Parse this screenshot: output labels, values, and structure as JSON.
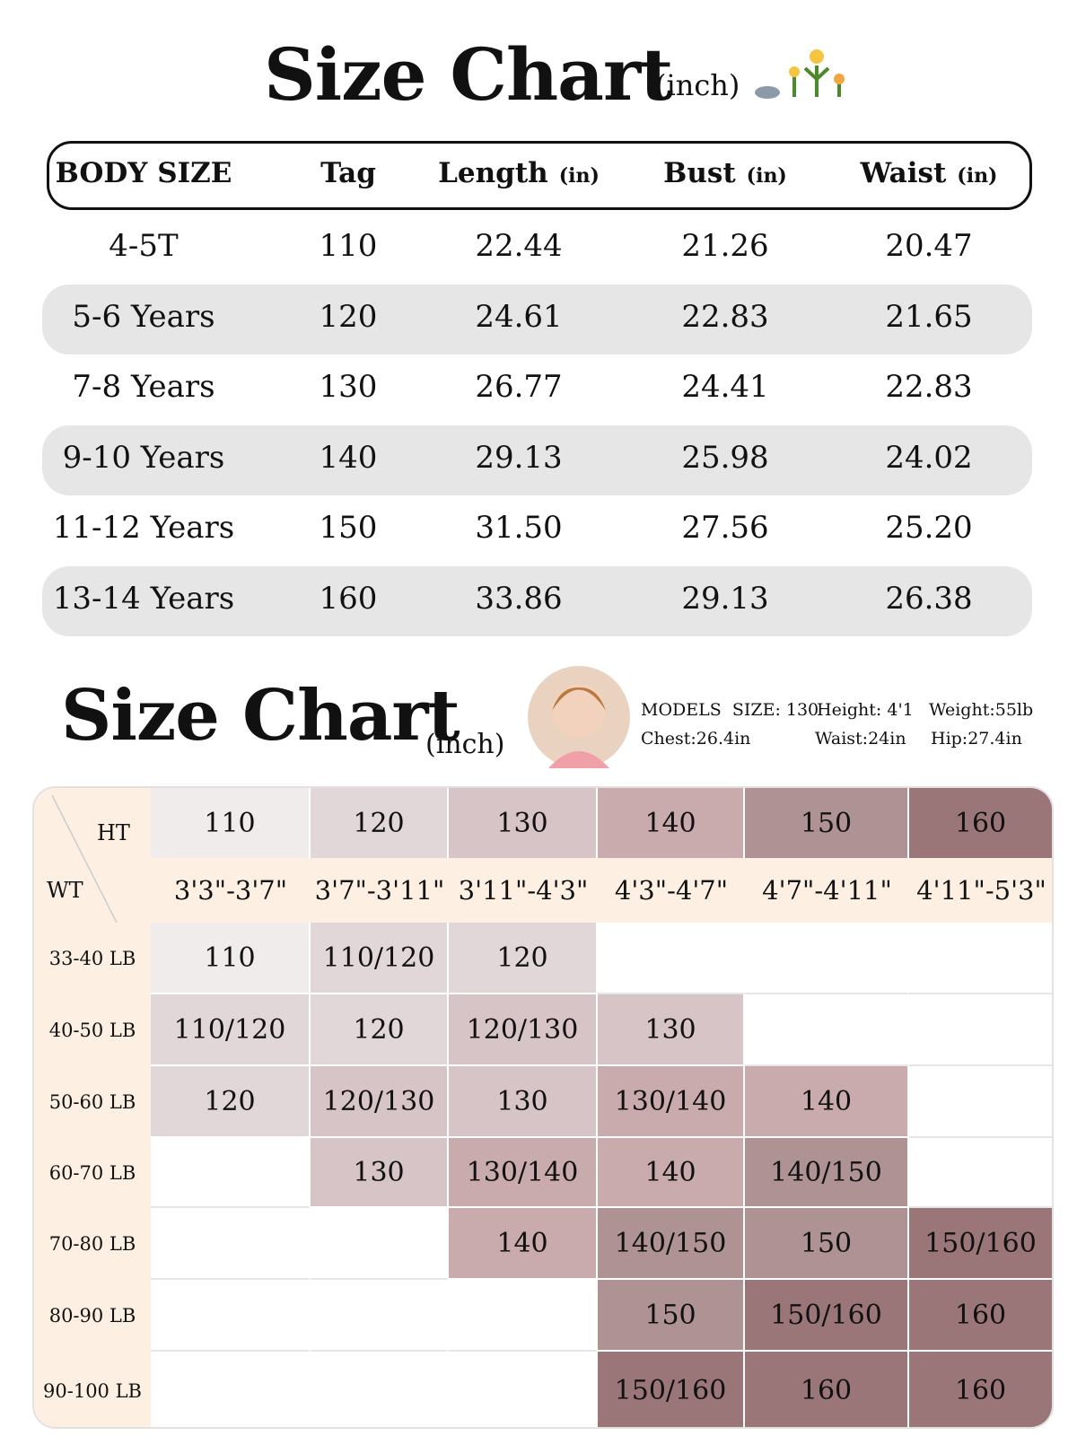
{
  "header": {
    "title": "Size Chart",
    "unit": "(inch)"
  },
  "size_table": {
    "columns": [
      {
        "label": "BODY SIZE"
      },
      {
        "label": "Tag"
      },
      {
        "label": "Length",
        "unit": "(in)"
      },
      {
        "label": "Bust",
        "unit": "(in)"
      },
      {
        "label": "Waist",
        "unit": "(in)"
      }
    ],
    "rows": [
      [
        "4-5T",
        "110",
        "22.44",
        "21.26",
        "20.47"
      ],
      [
        "5-6 Years",
        "120",
        "24.61",
        "22.83",
        "21.65"
      ],
      [
        "7-8 Years",
        "130",
        "26.77",
        "24.41",
        "22.83"
      ],
      [
        "9-10 Years",
        "140",
        "29.13",
        "25.98",
        "24.02"
      ],
      [
        "11-12 Years",
        "150",
        "31.50",
        "27.56",
        "25.20"
      ],
      [
        "13-14 Years",
        "160",
        "33.86",
        "29.13",
        "26.38"
      ]
    ]
  },
  "section2": {
    "title": "Size Chart",
    "unit": "(inch)"
  },
  "model": {
    "size": "MODELS  SIZE: 130",
    "height": "Height: 4'1",
    "weight": "Weight:55lb",
    "chest": "Chest:26.4in",
    "waist": "Waist:24in",
    "hip": "Hip:27.4in"
  },
  "grid": {
    "ht_label": "HT",
    "wt_label": "WT",
    "heights": [
      "110",
      "120",
      "130",
      "140",
      "150",
      "160"
    ],
    "height_ranges": [
      "3'3\"-3'7\"",
      "3'7\"-3'11\"",
      "3'11\"-4'3\"",
      "4'3\"-4'7\"",
      "4'7\"-4'11\"",
      "4'11\"-5'3\""
    ],
    "colors": [
      "#f1ecec",
      "#e2d7d8",
      "#d7c4c6",
      "#c9abad",
      "#ae9294",
      "#9a7679"
    ],
    "rows": [
      {
        "weight": "33-40 LB",
        "cells": [
          "110",
          "110/120",
          "120",
          null,
          null,
          null
        ]
      },
      {
        "weight": "40-50 LB",
        "cells": [
          "110/120",
          "120",
          "120/130",
          "130",
          null,
          null
        ]
      },
      {
        "weight": "50-60 LB",
        "cells": [
          "120",
          "120/130",
          "130",
          "130/140",
          "140",
          null
        ]
      },
      {
        "weight": "60-70 LB",
        "cells": [
          null,
          "130",
          "130/140",
          "140",
          "140/150",
          null
        ]
      },
      {
        "weight": "70-80 LB",
        "cells": [
          null,
          null,
          "140",
          "140/150",
          "150",
          "150/160"
        ]
      },
      {
        "weight": "80-90 LB",
        "cells": [
          null,
          null,
          null,
          "150",
          "150/160",
          "160"
        ]
      },
      {
        "weight": "90-100 LB",
        "cells": [
          null,
          null,
          null,
          "150/160",
          "160",
          "160"
        ]
      }
    ]
  }
}
